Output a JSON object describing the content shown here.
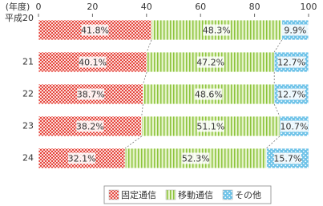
{
  "chart_data": {
    "type": "stacked_bar_h",
    "y_label": "(年度)",
    "categories": [
      "平成20",
      "21",
      "22",
      "23",
      "24"
    ],
    "xlim": [
      0,
      100
    ],
    "xticks": [
      0,
      20,
      40,
      60,
      80,
      100
    ],
    "legend_position": "bottom",
    "series": [
      {
        "name": "固定通信",
        "color": "#e5473f",
        "values": [
          41.8,
          40.1,
          38.7,
          38.2,
          32.1
        ],
        "value_labels": [
          "41.8%",
          "40.1%",
          "38.7%",
          "38.2%",
          "32.1%"
        ]
      },
      {
        "name": "移動通信",
        "color": "#8cc43c",
        "values": [
          48.3,
          47.2,
          48.6,
          51.1,
          52.3
        ],
        "value_labels": [
          "48.3%",
          "47.2%",
          "48.6%",
          "51.1%",
          "52.3%"
        ]
      },
      {
        "name": "その他",
        "color": "#6fc3e8",
        "values": [
          9.9,
          12.7,
          12.7,
          10.7,
          15.7
        ],
        "value_labels": [
          "9.9%",
          "12.7%",
          "12.7%",
          "10.7%",
          "15.7%"
        ]
      }
    ]
  }
}
